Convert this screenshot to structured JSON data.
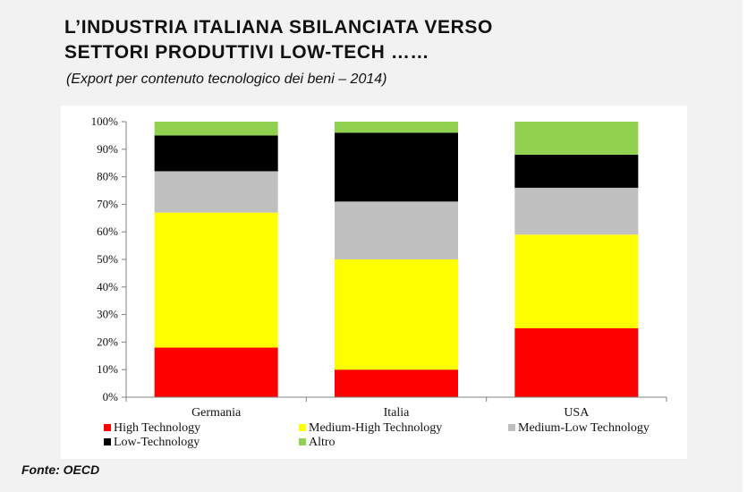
{
  "header": {
    "title_line1": "L’INDUSTRIA ITALIANA SBILANCIATA VERSO",
    "title_line2": "SETTORI PRODUTTIVI LOW-TECH ……",
    "subtitle": "(Export per contenuto tecnologico dei beni – 2014)"
  },
  "source": "Fonte: OECD",
  "chart_data": {
    "type": "bar",
    "stacked": true,
    "percent": true,
    "categories": [
      "Germania",
      "Italia",
      "USA"
    ],
    "series": [
      {
        "name": "High Technology",
        "color": "#ff0000",
        "values": [
          18,
          10,
          25
        ]
      },
      {
        "name": "Medium-High Technology",
        "color": "#ffff00",
        "values": [
          49,
          40,
          34
        ]
      },
      {
        "name": "Medium-Low Technology",
        "color": "#bfbfbf",
        "values": [
          15,
          21,
          17
        ]
      },
      {
        "name": "Low-Technology",
        "color": "#000000",
        "values": [
          13,
          25,
          12
        ]
      },
      {
        "name": "Altro",
        "color": "#92d050",
        "values": [
          5,
          4,
          12
        ]
      }
    ],
    "ylim": [
      0,
      100
    ],
    "yticks": [
      "0%",
      "10%",
      "20%",
      "30%",
      "40%",
      "50%",
      "60%",
      "70%",
      "80%",
      "90%",
      "100%"
    ],
    "grid": false,
    "legend_position": "bottom"
  }
}
